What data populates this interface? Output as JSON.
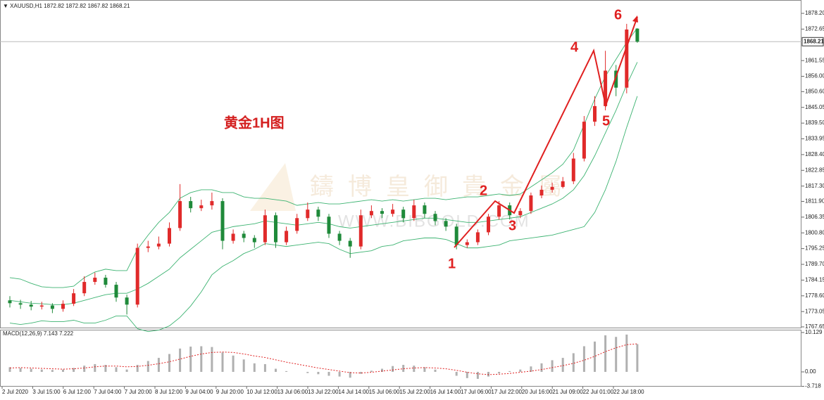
{
  "chart_data": [
    {
      "type": "candlestick",
      "symbol": "XAUUSD,H1",
      "header_values": [
        1872.82,
        1872.82,
        1867.82,
        1868.21
      ],
      "annotation": "黄金1H图",
      "wave_labels": [
        "1",
        "2",
        "3",
        "4",
        "5",
        "6"
      ],
      "watermark_cn": "鑄博皇御貴金屬",
      "watermark_en": "WWW.BIBGOLD.COM",
      "current_price": 1868.21,
      "up_color": "#e02a2a",
      "down_color": "#1f8a3a",
      "band_color": "#3cb371",
      "ylim": [
        1767.15,
        1882.91
      ],
      "yticks": [
        {
          "value": 1878.2,
          "label": "1878.20"
        },
        1872.65,
        1861.55,
        {
          "value": 1856,
          "label": "1856.00"
        },
        {
          "value": 1850.6,
          "label": "1850.60"
        },
        1845.05,
        {
          "value": 1839.5,
          "label": "1839.50"
        },
        1833.95,
        {
          "value": 1828.4,
          "label": "1828.40"
        },
        1822.85,
        {
          "value": 1817.3,
          "label": "1817.30"
        },
        {
          "value": 1811.9,
          "label": "1811.90"
        },
        1806.35,
        {
          "value": 1800.8,
          "label": "1800.80"
        },
        1795.25,
        {
          "value": 1789.7,
          "label": "1789.70"
        },
        1784.15,
        {
          "value": 1778.6,
          "label": "1778.60"
        },
        1773.05,
        1767.65
      ],
      "x_tick_labels": [
        "2 Jul 2020",
        "3 Jul 15:00",
        "6 Jul 12:00",
        "7 Jul 04:00",
        "7 Jul 20:00",
        "8 Jul 12:00",
        "9 Jul 04:00",
        "9 Jul 20:00",
        "10 Jul 12:00",
        "13 Jul 06:00",
        "13 Jul 22:00",
        "14 Jul 14:00",
        "15 Jul 06:00",
        "15 Jul 22:00",
        "16 Jul 14:00",
        "17 Jul 06:00",
        "17 Jul 22:00",
        "20 Jul 16:00",
        "21 Jul 09:00",
        "22 Jul 01:00",
        "22 Jul 18:00"
      ],
      "open": [
        1777.0,
        1776.0,
        1775.5,
        1774.8,
        1775.2,
        1774.0,
        1775.8,
        1779.5,
        1783.5,
        1785.0,
        1782.5,
        1778.0,
        1775.5,
        1795.5,
        1796.0,
        1797.0,
        1802.5,
        1812.0,
        1809.5,
        1810.5,
        1812.0,
        1798.0,
        1800.5,
        1799.0,
        1797.5,
        1807.0,
        1797.5,
        1801.5,
        1806.0,
        1809.0,
        1806.5,
        1800.5,
        1798.0,
        1796.0,
        1807.0,
        1808.5,
        1807.5,
        1809.0,
        1806.0,
        1810.5,
        1807.5,
        1805.0,
        1803.0,
        1796.5,
        1797.5,
        1801.0,
        1806.5,
        1810.5,
        1807.0,
        1808.5,
        1814.0,
        1816.0,
        1817.0,
        1819.0,
        1827.0,
        1840.0,
        1845.5,
        1858.0,
        1852.0,
        1872.82
      ],
      "high": [
        1778.5,
        1777.2,
        1776.8,
        1776.5,
        1776.0,
        1777.0,
        1781.0,
        1785.5,
        1786.8,
        1786.0,
        1783.5,
        1779.0,
        1797.0,
        1798.0,
        1799.5,
        1804.5,
        1818.0,
        1813.5,
        1812.5,
        1815.0,
        1813.0,
        1802.0,
        1801.5,
        1800.0,
        1809.0,
        1808.0,
        1803.0,
        1807.5,
        1811.5,
        1810.0,
        1807.5,
        1801.5,
        1799.0,
        1809.0,
        1810.5,
        1809.5,
        1811.0,
        1810.0,
        1812.5,
        1811.5,
        1808.5,
        1806.0,
        1804.0,
        1798.5,
        1802.0,
        1807.5,
        1812.0,
        1811.5,
        1809.5,
        1815.0,
        1817.5,
        1818.5,
        1820.5,
        1829.0,
        1842.0,
        1849.0,
        1865.0,
        1860.0,
        1874.5,
        1872.82
      ],
      "low": [
        1774.5,
        1774.0,
        1773.5,
        1773.8,
        1772.5,
        1773.0,
        1775.0,
        1778.5,
        1782.5,
        1781.5,
        1776.5,
        1772.0,
        1774.5,
        1794.0,
        1795.0,
        1796.0,
        1801.5,
        1808.0,
        1808.5,
        1809.0,
        1795.0,
        1797.0,
        1797.5,
        1795.5,
        1796.5,
        1795.5,
        1796.5,
        1800.5,
        1805.0,
        1805.0,
        1799.0,
        1796.5,
        1792.0,
        1795.0,
        1806.0,
        1806.0,
        1806.5,
        1804.5,
        1805.0,
        1806.0,
        1803.5,
        1801.5,
        1795.0,
        1795.5,
        1796.5,
        1800.0,
        1805.5,
        1805.5,
        1806.0,
        1807.5,
        1813.0,
        1815.0,
        1816.5,
        1818.0,
        1826.0,
        1838.5,
        1844.0,
        1849.0,
        1850.0,
        1867.82
      ],
      "close": [
        1776.0,
        1775.5,
        1774.8,
        1775.2,
        1774.0,
        1775.8,
        1779.5,
        1783.5,
        1785.0,
        1782.5,
        1778.0,
        1775.5,
        1795.5,
        1796.0,
        1797.0,
        1802.5,
        1812.0,
        1809.5,
        1810.5,
        1812.0,
        1798.0,
        1800.5,
        1799.0,
        1797.5,
        1807.0,
        1797.5,
        1801.5,
        1806.0,
        1809.0,
        1806.5,
        1800.5,
        1798.0,
        1796.0,
        1807.0,
        1808.5,
        1807.5,
        1809.0,
        1806.0,
        1810.5,
        1807.5,
        1805.0,
        1803.0,
        1796.5,
        1797.5,
        1801.0,
        1806.5,
        1810.5,
        1807.0,
        1808.5,
        1814.0,
        1816.0,
        1817.0,
        1819.0,
        1827.0,
        1840.0,
        1845.5,
        1858.0,
        1852.0,
        1872.5,
        1868.21
      ],
      "bands": {
        "upper": [
          1785,
          1784.5,
          1783,
          1781.8,
          1781.5,
          1781.5,
          1782,
          1785,
          1787,
          1788,
          1787.5,
          1787.5,
          1795,
          1800,
          1804.5,
          1808,
          1813,
          1815,
          1816,
          1816,
          1815,
          1815,
          1813.5,
          1813,
          1813,
          1812.5,
          1812,
          1810.5,
          1811,
          1811.5,
          1811,
          1811,
          1811.5,
          1812,
          1812.5,
          1812,
          1812.5,
          1812,
          1812.5,
          1813,
          1813,
          1812.5,
          1813,
          1813.5,
          1813.5,
          1814,
          1814.5,
          1814,
          1814.5,
          1817,
          1819.5,
          1822,
          1825,
          1830,
          1839,
          1848,
          1856,
          1862,
          1868,
          1873
        ],
        "middle": [
          1777,
          1776.5,
          1776,
          1775.8,
          1775.5,
          1775.5,
          1776,
          1777,
          1778,
          1779,
          1779.5,
          1779.5,
          1781,
          1783,
          1785.5,
          1788,
          1792,
          1795,
          1798,
          1801,
          1802,
          1803,
          1803.5,
          1804,
          1805,
          1804.5,
          1804,
          1803.5,
          1804,
          1804.5,
          1804,
          1803,
          1802.5,
          1803,
          1803.5,
          1804,
          1804.5,
          1805,
          1805.5,
          1806,
          1806,
          1805.5,
          1805,
          1804.5,
          1804.5,
          1805,
          1805.5,
          1806,
          1806.5,
          1808,
          1809.5,
          1811,
          1813,
          1816,
          1821,
          1828,
          1836,
          1844,
          1853,
          1861
        ],
        "lower": [
          1769,
          1768.5,
          1769,
          1769.8,
          1769.5,
          1769.5,
          1770,
          1769,
          1769,
          1770,
          1771.5,
          1771.5,
          1767,
          1766,
          1766.5,
          1768,
          1771,
          1775,
          1780,
          1786,
          1789,
          1791,
          1793.5,
          1795,
          1797,
          1796.5,
          1796,
          1796.5,
          1797,
          1797.5,
          1797,
          1795,
          1793.5,
          1794,
          1794.5,
          1796,
          1796.5,
          1798,
          1798.5,
          1799,
          1799,
          1798.5,
          1797,
          1795.5,
          1795.5,
          1796,
          1796.5,
          1798,
          1798.5,
          1799,
          1799.5,
          1800,
          1801,
          1802,
          1803,
          1808,
          1816,
          1826,
          1838,
          1849
        ]
      }
    },
    {
      "type": "macd",
      "label": "MACD(12,26,9)",
      "header_values": [
        7.143,
        7.222
      ],
      "hist_color": "#b0b0b0",
      "signal_color": "#e02020",
      "ylim": [
        -3.8,
        10.67
      ],
      "yticks": [
        10.129,
        {
          "value": 0,
          "label": "0.00"
        },
        -3.718
      ],
      "histogram": [
        1.2,
        1.0,
        0.8,
        0.6,
        0.5,
        0.6,
        1.0,
        1.6,
        2.0,
        1.8,
        1.2,
        0.6,
        1.8,
        2.8,
        3.6,
        4.6,
        6.0,
        6.5,
        6.6,
        6.4,
        5.0,
        4.2,
        3.2,
        2.2,
        2.0,
        0.8,
        0.2,
        0.0,
        -0.3,
        -0.6,
        -1.0,
        -1.2,
        -1.5,
        -0.5,
        0.3,
        0.8,
        1.5,
        1.8,
        1.6,
        1.2,
        0.6,
        0.0,
        -1.0,
        -1.6,
        -1.8,
        -1.2,
        -0.4,
        0.2,
        0.6,
        1.4,
        2.2,
        3.0,
        3.6,
        4.8,
        6.6,
        7.8,
        9.4,
        9.0,
        9.6,
        7.143
      ],
      "signal": [
        1.0,
        1.1,
        1.0,
        0.9,
        0.8,
        0.7,
        0.8,
        1.0,
        1.3,
        1.5,
        1.5,
        1.3,
        1.4,
        1.7,
        2.1,
        2.6,
        3.3,
        4.0,
        4.6,
        5.0,
        5.1,
        5.0,
        4.6,
        4.1,
        3.7,
        3.1,
        2.5,
        2.0,
        1.5,
        1.0,
        0.6,
        0.2,
        -0.2,
        -0.3,
        -0.1,
        0.2,
        0.5,
        0.8,
        1.0,
        1.1,
        1.0,
        0.8,
        0.4,
        -0.1,
        -0.5,
        -0.7,
        -0.6,
        -0.4,
        -0.1,
        0.2,
        0.6,
        1.1,
        1.6,
        2.2,
        3.0,
        4.0,
        5.2,
        6.2,
        7.0,
        7.222
      ]
    }
  ]
}
